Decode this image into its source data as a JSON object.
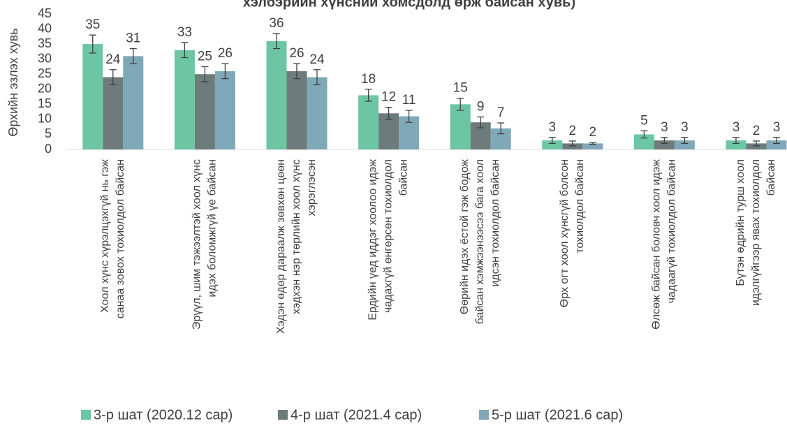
{
  "chart_data": {
    "type": "bar",
    "title": "хэлбэрийн хүнсний хомсдолд өрж байсан хувь)",
    "y_label": "Өрхийн эзлэх хувь",
    "categories": [
      "Хоол хүнс хүрэлцэхгүй нь гэж санаа зовох тохиолдол байсан",
      "Эрүүл, шим тэжээлтэй хоол хүнс идэх боломжгүй үе байсан",
      "Хэдэн өдөр дараалж зөвхөн цөөн хэдхэн нэр төрлийн хоол хүнс хэрэглэсэн",
      "Ердийн үед иддэг хоолоо идэж чадахгүй өнгөрсөн тохиолдол байсан",
      "Өөрийн идэх ёстой гэж бодож байсан хэмжээнээсээ бага хоол идсэн тохиолдол байсан",
      "Өрх огт хоол хүнсгүй болсон тохиолдол байсан",
      "Өлсөж байсан боловч хоол идэж чадаагүй тохиолдол байсан",
      "Бүтэн өдрийн турш хоол идэлгүйгээр явах тохиолдол байсан"
    ],
    "series": [
      {
        "name": "3-р шат (2020.12 сар)",
        "color": "#6cc5a3",
        "values": [
          35,
          33,
          36,
          18,
          15,
          3,
          5,
          3
        ],
        "errors": [
          3,
          2.5,
          2.5,
          2,
          2,
          1,
          1.2,
          1
        ]
      },
      {
        "name": "4-р шат (2021.4 сар)",
        "color": "#6e7b7b",
        "values": [
          24,
          25,
          26,
          12,
          9,
          2,
          3,
          2
        ],
        "errors": [
          2.5,
          2.5,
          2.5,
          2,
          1.8,
          0.8,
          1,
          0.8
        ]
      },
      {
        "name": "5-р шат (2021.6 сар)",
        "color": "#7fa8b8",
        "values": [
          31,
          26,
          24,
          11,
          7,
          2,
          3,
          3
        ],
        "errors": [
          2.5,
          2.5,
          2.5,
          2,
          1.8,
          0.3,
          1,
          1
        ]
      }
    ],
    "ylim": [
      0,
      45
    ],
    "yticks": [
      0,
      5,
      10,
      15,
      20,
      25,
      30,
      35,
      40,
      45
    ]
  }
}
